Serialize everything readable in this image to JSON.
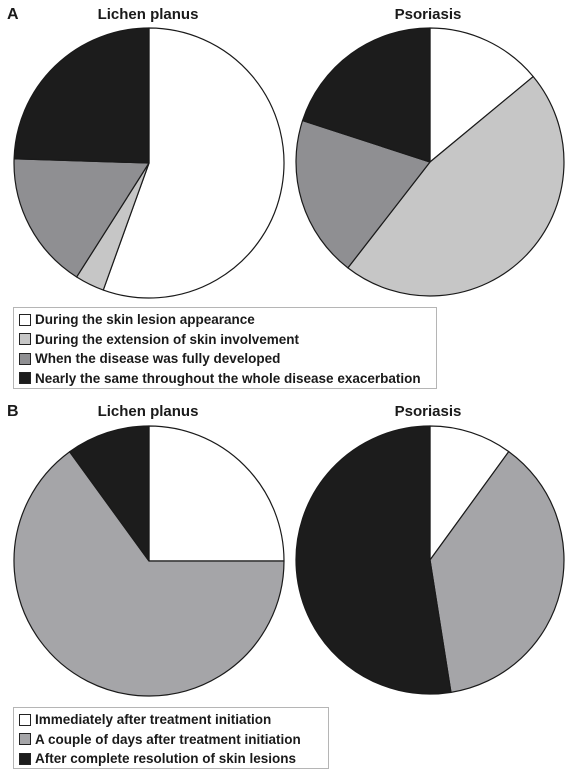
{
  "colors": {
    "white": "#ffffff",
    "light_gray": "#c6c6c6",
    "mid_gray": "#8f8f92",
    "mid_gray_b": "#a5a5a8",
    "black": "#1c1c1c"
  },
  "panel_a": {
    "letter": "A",
    "legend": [
      "During the skin lesion appearance",
      "During the extension of skin involvement",
      "When the disease was fully developed",
      "Nearly the same throughout the whole disease exacerbation"
    ]
  },
  "panel_b": {
    "letter": "B",
    "legend": [
      "Immediately after treatment initiation",
      "A couple of days after treatment initiation",
      "After complete resolution of skin lesions"
    ]
  },
  "chart_data": [
    {
      "type": "pie",
      "panel": "A",
      "title": "Lichen planus",
      "start_angle_deg": 0,
      "direction": "clockwise",
      "slices": [
        {
          "label": "During the skin lesion appearance",
          "value": 55.5,
          "color": "#ffffff"
        },
        {
          "label": "During the extension of skin involvement",
          "value": 3.5,
          "color": "#c6c6c6"
        },
        {
          "label": "When the disease was fully developed",
          "value": 16.5,
          "color": "#8f8f92"
        },
        {
          "label": "Nearly the same throughout the whole disease exacerbation",
          "value": 24.5,
          "color": "#1c1c1c"
        }
      ]
    },
    {
      "type": "pie",
      "panel": "A",
      "title": "Psoriasis",
      "start_angle_deg": 0,
      "direction": "clockwise",
      "slices": [
        {
          "label": "During the skin lesion appearance",
          "value": 14,
          "color": "#ffffff"
        },
        {
          "label": "During the extension of skin involvement",
          "value": 46.5,
          "color": "#c6c6c6"
        },
        {
          "label": "When the disease was fully developed",
          "value": 19.5,
          "color": "#8f8f92"
        },
        {
          "label": "Nearly the same throughout the whole disease exacerbation",
          "value": 20,
          "color": "#1c1c1c"
        }
      ]
    },
    {
      "type": "pie",
      "panel": "B",
      "title": "Lichen planus",
      "start_angle_deg": 0,
      "direction": "clockwise",
      "slices": [
        {
          "label": "Immediately after treatment initiation",
          "value": 25,
          "color": "#ffffff"
        },
        {
          "label": "A couple of days after treatment initiation",
          "value": 65,
          "color": "#a5a5a8"
        },
        {
          "label": "After complete resolution of skin lesions",
          "value": 10,
          "color": "#1c1c1c"
        }
      ]
    },
    {
      "type": "pie",
      "panel": "B",
      "title": "Psoriasis",
      "start_angle_deg": 0,
      "direction": "clockwise",
      "slices": [
        {
          "label": "Immediately after treatment initiation",
          "value": 10,
          "color": "#ffffff"
        },
        {
          "label": "A couple of days after treatment initiation",
          "value": 37.5,
          "color": "#a5a5a8"
        },
        {
          "label": "After complete resolution of skin lesions",
          "value": 52.5,
          "color": "#1c1c1c"
        }
      ]
    }
  ]
}
